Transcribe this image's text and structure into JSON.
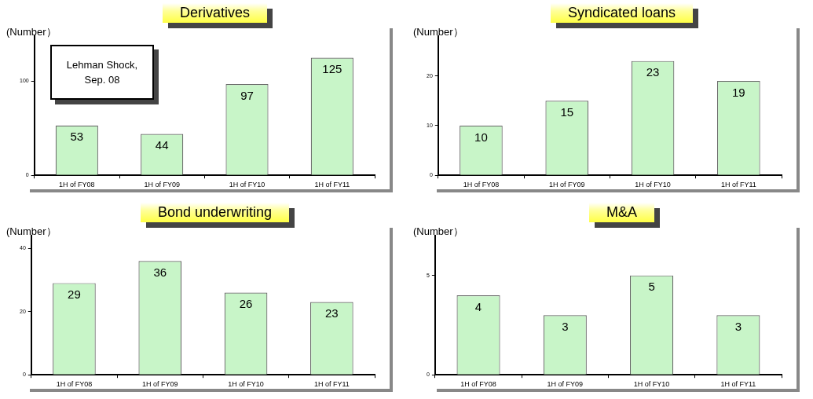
{
  "chart_data": [
    {
      "type": "bar",
      "title": "Derivatives",
      "ylabel": "(Number）",
      "categories": [
        "1H of FY08",
        "1H of FY09",
        "1H of FY10",
        "1H of FY11"
      ],
      "values": [
        53,
        44,
        97,
        125
      ],
      "color": "#c8f5c8",
      "ylim": [
        0,
        148
      ],
      "yticks": [
        0,
        100
      ],
      "data_labels": true,
      "annotations": [
        "Lehman Shock,\nSep. 08"
      ]
    },
    {
      "type": "bar",
      "title": "Syndicated loans",
      "ylabel": "(Number）",
      "categories": [
        "1H of FY08",
        "1H of FY09",
        "1H of FY10",
        "1H of FY11"
      ],
      "values": [
        10,
        15,
        23,
        19
      ],
      "color": "#c8f5c8",
      "ylim": [
        0,
        28
      ],
      "yticks": [
        0,
        10,
        20
      ],
      "data_labels": true
    },
    {
      "type": "bar",
      "title": "Bond underwriting",
      "ylabel": "(Number）",
      "categories": [
        "1H of FY08",
        "1H of FY09",
        "1H of FY10",
        "1H of FY11"
      ],
      "values": [
        29,
        36,
        26,
        23
      ],
      "color": "#c8f5c8",
      "ylim": [
        0,
        44
      ],
      "yticks": [
        0,
        20,
        40
      ],
      "data_labels": true
    },
    {
      "type": "bar",
      "title": "M&A",
      "ylabel": "(Number）",
      "categories": [
        "1H of FY08",
        "1H of FY09",
        "1H of FY10",
        "1H of FY11"
      ],
      "values": [
        4,
        3,
        5,
        3
      ],
      "color": "#c8f5c8",
      "ylim": [
        0,
        7
      ],
      "yticks": [
        0,
        5
      ],
      "data_labels": true
    }
  ]
}
